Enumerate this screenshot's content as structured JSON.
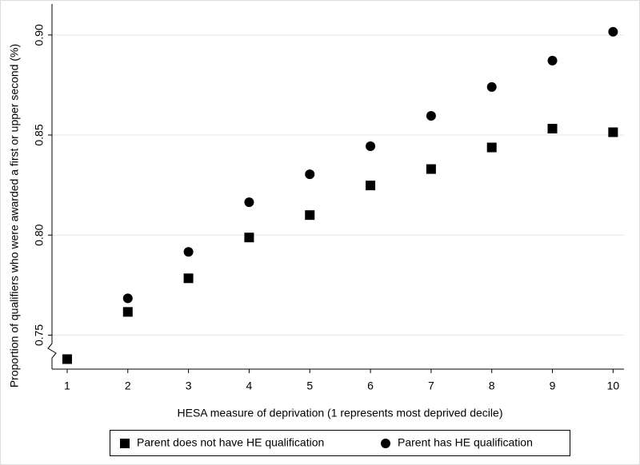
{
  "chart_data": {
    "type": "scatter",
    "x_label": "HESA measure of deprivation (1 represents most deprived decile)",
    "y_label": "Proportion of qualifiers who were awarded a first or upper second (%)",
    "x": [
      1,
      2,
      3,
      4,
      5,
      6,
      7,
      8,
      9,
      10
    ],
    "series": [
      {
        "name": "Parent does not have HE qualification",
        "color": "#000000",
        "marker": "square",
        "values": [
          0.738,
          0.7616,
          0.7784,
          0.7988,
          0.81,
          0.8248,
          0.833,
          0.8438,
          0.8532,
          0.8514
        ]
      },
      {
        "name": "Parent has HE qualification",
        "color": "#000000",
        "marker": "circle",
        "values": [
          0.738,
          0.7684,
          0.7916,
          0.8164,
          0.8304,
          0.8444,
          0.8596,
          0.874,
          0.8872,
          0.9016
        ]
      }
    ],
    "xlim": [
      0.75,
      10.18
    ],
    "xticks": [
      1,
      2,
      3,
      4,
      5,
      6,
      7,
      8,
      9,
      10
    ],
    "ylim": [
      0.733,
      0.9155
    ],
    "yticks": [
      0.75,
      {
        "value": 0.8,
        "label": "0.80"
      },
      0.85,
      {
        "value": 0.9,
        "label": "0.90"
      }
    ],
    "grid": true,
    "legend": "bottom"
  }
}
